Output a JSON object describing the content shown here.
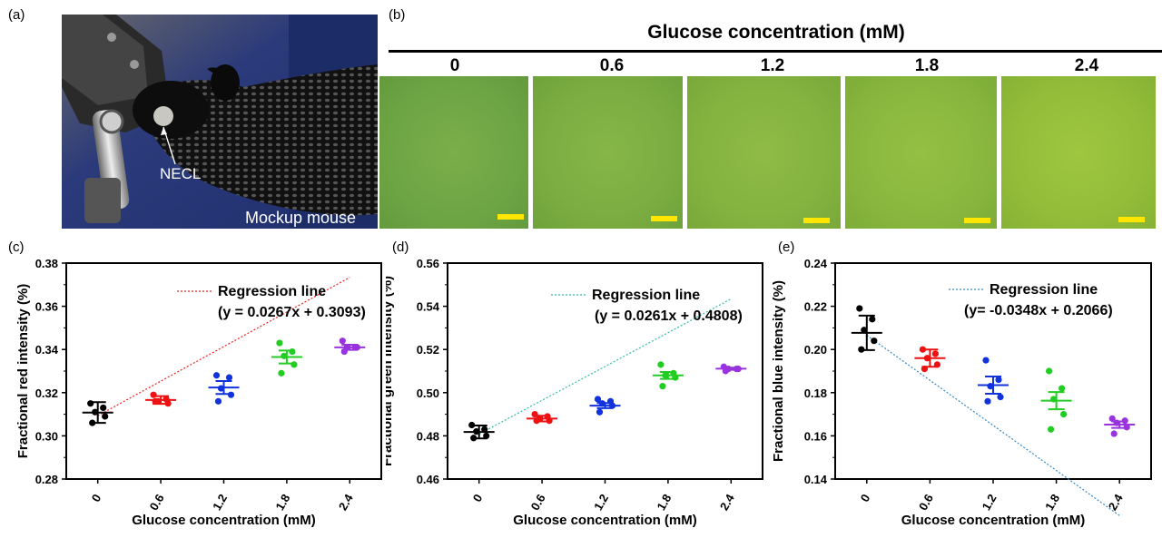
{
  "panel_a": {
    "label": "(a)",
    "necl_label": "NECL",
    "mouse_label": "Mockup mouse"
  },
  "panel_b": {
    "label": "(b)",
    "title": "Glucose concentration (mM)",
    "concentrations": [
      "0",
      "0.6",
      "1.2",
      "1.8",
      "2.4"
    ],
    "colors": {
      "scalebar": "#ffe600"
    }
  },
  "chart_data": [
    {
      "panel": "(c)",
      "type": "scatter",
      "xlabel": "Glucose concentration (mM)",
      "ylabel": "Fractional red intensity (%)",
      "categories": [
        "0",
        "0.6",
        "1.2",
        "1.8",
        "2.4"
      ],
      "yticks": [
        "0.28",
        "0.30",
        "0.32",
        "0.34",
        "0.36",
        "0.38"
      ],
      "ylim": [
        0.28,
        0.38
      ],
      "legend": "Regression line",
      "equation": "(y = 0.0267x + 0.3093)",
      "slope": 0.0267,
      "intercept": 0.3093,
      "line_color": "#ee2222",
      "series": [
        {
          "x": "0",
          "color": "#000000",
          "points": [
            0.315,
            0.313,
            0.311,
            0.309,
            0.306
          ],
          "mean": 0.3108,
          "err": 0.0048
        },
        {
          "x": "0.6",
          "color": "#ee1111",
          "points": [
            0.319,
            0.317,
            0.316,
            0.315,
            0.316
          ],
          "mean": 0.3166,
          "err": 0.0018
        },
        {
          "x": "1.2",
          "color": "#1133dd",
          "points": [
            0.328,
            0.327,
            0.322,
            0.319,
            0.316
          ],
          "mean": 0.3224,
          "err": 0.003
        },
        {
          "x": "1.8",
          "color": "#22cc22",
          "points": [
            0.343,
            0.339,
            0.337,
            0.333,
            0.329
          ],
          "mean": 0.3365,
          "err": 0.003
        },
        {
          "x": "2.4",
          "color": "#9933dd",
          "points": [
            0.344,
            0.341,
            0.341,
            0.341,
            0.339
          ],
          "mean": 0.341,
          "err": 0.0012
        }
      ]
    },
    {
      "panel": "(d)",
      "type": "scatter",
      "xlabel": "Glucose concentration (mM)",
      "ylabel": "Fractional green intensity (%)",
      "categories": [
        "0",
        "0.6",
        "1.2",
        "1.8",
        "2.4"
      ],
      "yticks": [
        "0.46",
        "0.48",
        "0.50",
        "0.52",
        "0.54",
        "0.56"
      ],
      "ylim": [
        0.46,
        0.56
      ],
      "legend": "Regression line",
      "equation": "(y = 0.0261x + 0.4808)",
      "slope": 0.0261,
      "intercept": 0.4808,
      "line_color": "#33bbaa",
      "series": [
        {
          "x": "0",
          "color": "#000000",
          "points": [
            0.485,
            0.483,
            0.482,
            0.48,
            0.479
          ],
          "mean": 0.4818,
          "err": 0.003
        },
        {
          "x": "0.6",
          "color": "#ee1111",
          "points": [
            0.49,
            0.489,
            0.488,
            0.487,
            0.487
          ],
          "mean": 0.488,
          "err": 0.0013
        },
        {
          "x": "1.2",
          "color": "#1133dd",
          "points": [
            0.497,
            0.496,
            0.495,
            0.494,
            0.491
          ],
          "mean": 0.494,
          "err": 0.0012
        },
        {
          "x": "1.8",
          "color": "#22cc22",
          "points": [
            0.513,
            0.509,
            0.508,
            0.507,
            0.503
          ],
          "mean": 0.508,
          "err": 0.0016
        },
        {
          "x": "2.4",
          "color": "#9933dd",
          "points": [
            0.512,
            0.511,
            0.511,
            0.511,
            0.51
          ],
          "mean": 0.5111,
          "err": 0.0005
        }
      ]
    },
    {
      "panel": "(e)",
      "type": "scatter",
      "xlabel": "Glucose concentration (mM)",
      "ylabel": "Fractional blue intensity (%)",
      "categories": [
        "0",
        "0.6",
        "1.2",
        "1.8",
        "2.4"
      ],
      "yticks": [
        "0.14",
        "0.16",
        "0.18",
        "0.20",
        "0.22",
        "0.24"
      ],
      "ylim": [
        0.14,
        0.24
      ],
      "legend": "Regression line",
      "equation": "(y= -0.0348x + 0.2066)",
      "slope": -0.0348,
      "intercept": 0.2066,
      "line_color": "#3388cc",
      "series": [
        {
          "x": "0",
          "color": "#000000",
          "points": [
            0.219,
            0.214,
            0.209,
            0.204,
            0.2
          ],
          "mean": 0.2077,
          "err": 0.008
        },
        {
          "x": "0.6",
          "color": "#ee1111",
          "points": [
            0.2,
            0.198,
            0.196,
            0.193,
            0.191
          ],
          "mean": 0.196,
          "err": 0.004
        },
        {
          "x": "1.2",
          "color": "#1133dd",
          "points": [
            0.195,
            0.186,
            0.183,
            0.178,
            0.176
          ],
          "mean": 0.1835,
          "err": 0.004
        },
        {
          "x": "1.8",
          "color": "#22cc22",
          "points": [
            0.19,
            0.182,
            0.177,
            0.17,
            0.163
          ],
          "mean": 0.1763,
          "err": 0.004
        },
        {
          "x": "2.4",
          "color": "#9933dd",
          "points": [
            0.168,
            0.167,
            0.166,
            0.164,
            0.161
          ],
          "mean": 0.1652,
          "err": 0.0015
        }
      ]
    }
  ]
}
